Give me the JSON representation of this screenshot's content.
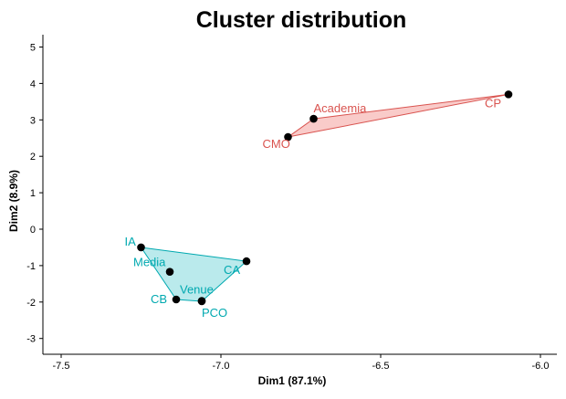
{
  "chart_data": {
    "type": "scatter",
    "title": "Cluster distribution",
    "xlabel": "Dim1 (87.1%)",
    "ylabel": "Dim2 (8.9%)",
    "xlim": [
      -7.55,
      -5.95
    ],
    "ylim": [
      -3.3,
      5.4
    ],
    "xticks": [
      -7.5,
      -7.0,
      -6.5,
      -6.0
    ],
    "xtick_labels": [
      "-7.5",
      "-7.0",
      "-6.5",
      "-6.0"
    ],
    "yticks": [
      -3,
      -2,
      -1,
      0,
      1,
      2,
      3,
      4,
      5
    ],
    "ytick_labels": [
      "-3",
      "-2",
      "-1",
      "0",
      "1",
      "2",
      "3",
      "4",
      "5"
    ],
    "grid": false,
    "clusters": [
      {
        "color": "#d9534f",
        "fill": "#f8c5c3",
        "points": [
          {
            "label": "Academia",
            "x": -6.71,
            "y": 3.03
          },
          {
            "label": "CMO",
            "x": -6.79,
            "y": 2.53
          },
          {
            "label": "CP",
            "x": -6.1,
            "y": 3.7
          }
        ],
        "hull": [
          "CMO",
          "Academia",
          "CP"
        ]
      },
      {
        "color": "#00a9b0",
        "fill": "#b3e8ea",
        "points": [
          {
            "label": "IA",
            "x": -7.25,
            "y": -0.5
          },
          {
            "label": "Media",
            "x": -7.16,
            "y": -1.17
          },
          {
            "label": "CA",
            "x": -6.92,
            "y": -0.88
          },
          {
            "label": "CB",
            "x": -7.14,
            "y": -1.93
          },
          {
            "label": "Venue",
            "x": -7.06,
            "y": -1.97
          },
          {
            "label": "PCO",
            "x": -7.06,
            "y": -1.98
          }
        ],
        "hull": [
          "IA",
          "CA",
          "PCO",
          "CB"
        ]
      }
    ]
  }
}
